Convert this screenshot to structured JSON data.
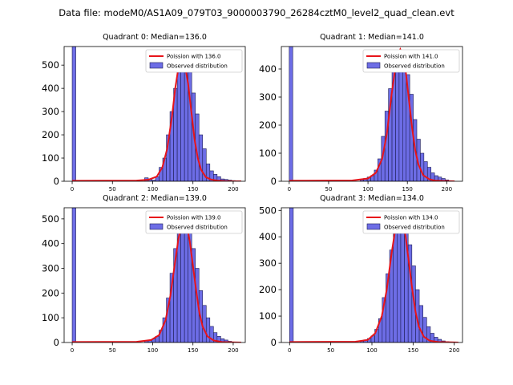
{
  "figure": {
    "title": "Data file: modeM0/AS1A09_079T03_9000003790_26284cztM0_level2_quad_clean.evt"
  },
  "colors": {
    "bar_fill": "#6d6de6",
    "bar_edge": "#1f1f55",
    "poisson_line": "#e8141a"
  },
  "chart_data": [
    {
      "type": "bar",
      "title": "Quadrant 0: Median=136.0",
      "legend": [
        "Poission with 136.0",
        "Observed distribution"
      ],
      "legend_position": "top-right",
      "xlim": [
        -10,
        215
      ],
      "ylim": [
        0,
        580
      ],
      "xticks": [
        0,
        50,
        100,
        150,
        200
      ],
      "yticks": [
        0,
        100,
        200,
        300,
        400,
        500
      ],
      "bin_width": 4.5,
      "bins": [
        {
          "x": 0,
          "y": 580
        },
        {
          "x": 90,
          "y": 15
        },
        {
          "x": 94.5,
          "y": 10
        },
        {
          "x": 99,
          "y": 5
        },
        {
          "x": 103.5,
          "y": 20
        },
        {
          "x": 108,
          "y": 60
        },
        {
          "x": 112.5,
          "y": 100
        },
        {
          "x": 117,
          "y": 200
        },
        {
          "x": 121.5,
          "y": 300
        },
        {
          "x": 126,
          "y": 400
        },
        {
          "x": 130.5,
          "y": 470
        },
        {
          "x": 135,
          "y": 525
        },
        {
          "x": 139.5,
          "y": 530
        },
        {
          "x": 144,
          "y": 470
        },
        {
          "x": 148.5,
          "y": 380
        },
        {
          "x": 153,
          "y": 290
        },
        {
          "x": 157.5,
          "y": 200
        },
        {
          "x": 162,
          "y": 140
        },
        {
          "x": 166.5,
          "y": 75
        },
        {
          "x": 171,
          "y": 45
        },
        {
          "x": 175.5,
          "y": 30
        },
        {
          "x": 180,
          "y": 20
        },
        {
          "x": 184.5,
          "y": 10
        },
        {
          "x": 189,
          "y": 8
        },
        {
          "x": 193.5,
          "y": 5
        },
        {
          "x": 198,
          "y": 3
        }
      ],
      "poisson_curve": {
        "x": [
          0,
          80,
          95,
          105,
          112,
          118,
          124,
          128,
          132,
          136,
          140,
          144,
          148,
          152,
          156,
          160,
          166,
          172,
          180,
          190,
          200,
          210
        ],
        "y": [
          2,
          3,
          7,
          20,
          60,
          140,
          280,
          400,
          490,
          530,
          500,
          420,
          300,
          180,
          100,
          50,
          18,
          8,
          3,
          1,
          0,
          0
        ]
      }
    },
    {
      "type": "bar",
      "title": "Quadrant 1: Median=141.0",
      "legend": [
        "Poission with 141.0",
        "Observed distribution"
      ],
      "legend_position": "top-right",
      "xlim": [
        -10,
        220
      ],
      "ylim": [
        0,
        480
      ],
      "xticks": [
        0,
        50,
        100,
        150,
        200
      ],
      "yticks": [
        0,
        100,
        200,
        300,
        400
      ],
      "bin_width": 4.5,
      "bins": [
        {
          "x": 0,
          "y": 480
        },
        {
          "x": 90,
          "y": 5
        },
        {
          "x": 94.5,
          "y": 10
        },
        {
          "x": 99,
          "y": 15
        },
        {
          "x": 103.5,
          "y": 20
        },
        {
          "x": 108,
          "y": 40
        },
        {
          "x": 112.5,
          "y": 80
        },
        {
          "x": 117,
          "y": 160
        },
        {
          "x": 121.5,
          "y": 250
        },
        {
          "x": 126,
          "y": 330
        },
        {
          "x": 130.5,
          "y": 400
        },
        {
          "x": 135,
          "y": 440
        },
        {
          "x": 139.5,
          "y": 460
        },
        {
          "x": 144,
          "y": 440
        },
        {
          "x": 148.5,
          "y": 380
        },
        {
          "x": 153,
          "y": 310
        },
        {
          "x": 157.5,
          "y": 220
        },
        {
          "x": 162,
          "y": 150
        },
        {
          "x": 166.5,
          "y": 100
        },
        {
          "x": 171,
          "y": 70
        },
        {
          "x": 175.5,
          "y": 50
        },
        {
          "x": 180,
          "y": 30
        },
        {
          "x": 184.5,
          "y": 20
        },
        {
          "x": 189,
          "y": 15
        },
        {
          "x": 193.5,
          "y": 10
        },
        {
          "x": 198,
          "y": 5
        }
      ],
      "poisson_curve": {
        "x": [
          0,
          80,
          100,
          110,
          118,
          124,
          130,
          134,
          138,
          141,
          144,
          148,
          152,
          156,
          160,
          164,
          170,
          178,
          186,
          196,
          210
        ],
        "y": [
          2,
          3,
          10,
          30,
          80,
          170,
          310,
          390,
          450,
          470,
          450,
          390,
          290,
          190,
          110,
          60,
          22,
          7,
          2,
          1,
          0
        ]
      }
    },
    {
      "type": "bar",
      "title": "Quadrant 2: Median=139.0",
      "legend": [
        "Poission with 139.0",
        "Observed distribution"
      ],
      "legend_position": "top-right",
      "xlim": [
        -10,
        215
      ],
      "ylim": [
        0,
        545
      ],
      "xticks": [
        0,
        50,
        100,
        150,
        200
      ],
      "yticks": [
        0,
        100,
        200,
        300,
        400,
        500
      ],
      "bin_width": 4.5,
      "bins": [
        {
          "x": 0,
          "y": 545
        },
        {
          "x": 90,
          "y": 8
        },
        {
          "x": 94.5,
          "y": 10
        },
        {
          "x": 99,
          "y": 15
        },
        {
          "x": 103.5,
          "y": 25
        },
        {
          "x": 108,
          "y": 50
        },
        {
          "x": 112.5,
          "y": 100
        },
        {
          "x": 117,
          "y": 180
        },
        {
          "x": 121.5,
          "y": 280
        },
        {
          "x": 126,
          "y": 380
        },
        {
          "x": 130.5,
          "y": 450
        },
        {
          "x": 135,
          "y": 500
        },
        {
          "x": 139.5,
          "y": 510
        },
        {
          "x": 144,
          "y": 460
        },
        {
          "x": 148.5,
          "y": 380
        },
        {
          "x": 153,
          "y": 300
        },
        {
          "x": 157.5,
          "y": 210
        },
        {
          "x": 162,
          "y": 150
        },
        {
          "x": 166.5,
          "y": 100
        },
        {
          "x": 171,
          "y": 65
        },
        {
          "x": 175.5,
          "y": 40
        },
        {
          "x": 180,
          "y": 25
        },
        {
          "x": 184.5,
          "y": 15
        },
        {
          "x": 189,
          "y": 10
        },
        {
          "x": 193.5,
          "y": 5
        }
      ],
      "poisson_curve": {
        "x": [
          0,
          80,
          98,
          108,
          116,
          122,
          128,
          132,
          136,
          139,
          142,
          146,
          150,
          154,
          158,
          162,
          168,
          176,
          186,
          198,
          210
        ],
        "y": [
          2,
          3,
          10,
          30,
          90,
          190,
          330,
          420,
          480,
          500,
          480,
          410,
          310,
          210,
          120,
          65,
          25,
          8,
          2,
          1,
          0
        ]
      }
    },
    {
      "type": "bar",
      "title": "Quadrant 3: Median=134.0",
      "legend": [
        "Poission with 134.0",
        "Observed distribution"
      ],
      "legend_position": "top-right",
      "xlim": [
        -10,
        210
      ],
      "ylim": [
        0,
        510
      ],
      "xticks": [
        0,
        50,
        100,
        150,
        200
      ],
      "yticks": [
        0,
        100,
        200,
        300,
        400,
        500
      ],
      "bin_width": 4.5,
      "bins": [
        {
          "x": 0,
          "y": 510
        },
        {
          "x": 85.5,
          "y": 5
        },
        {
          "x": 90,
          "y": 10
        },
        {
          "x": 94.5,
          "y": 15
        },
        {
          "x": 99,
          "y": 25
        },
        {
          "x": 103.5,
          "y": 50
        },
        {
          "x": 108,
          "y": 90
        },
        {
          "x": 112.5,
          "y": 170
        },
        {
          "x": 117,
          "y": 260
        },
        {
          "x": 121.5,
          "y": 350
        },
        {
          "x": 126,
          "y": 420
        },
        {
          "x": 130.5,
          "y": 470
        },
        {
          "x": 135,
          "y": 480
        },
        {
          "x": 139.5,
          "y": 440
        },
        {
          "x": 144,
          "y": 370
        },
        {
          "x": 148.5,
          "y": 290
        },
        {
          "x": 153,
          "y": 200
        },
        {
          "x": 157.5,
          "y": 140
        },
        {
          "x": 162,
          "y": 95
        },
        {
          "x": 166.5,
          "y": 60
        },
        {
          "x": 171,
          "y": 35
        },
        {
          "x": 175.5,
          "y": 20
        },
        {
          "x": 180,
          "y": 12
        },
        {
          "x": 184.5,
          "y": 6
        },
        {
          "x": 189,
          "y": 3
        }
      ],
      "poisson_curve": {
        "x": [
          0,
          80,
          95,
          104,
          112,
          118,
          124,
          128,
          132,
          134,
          137,
          141,
          145,
          149,
          153,
          157,
          163,
          170,
          180,
          192,
          205
        ],
        "y": [
          2,
          3,
          10,
          35,
          100,
          200,
          340,
          420,
          470,
          480,
          465,
          400,
          300,
          200,
          115,
          60,
          22,
          7,
          2,
          1,
          0
        ]
      }
    }
  ]
}
